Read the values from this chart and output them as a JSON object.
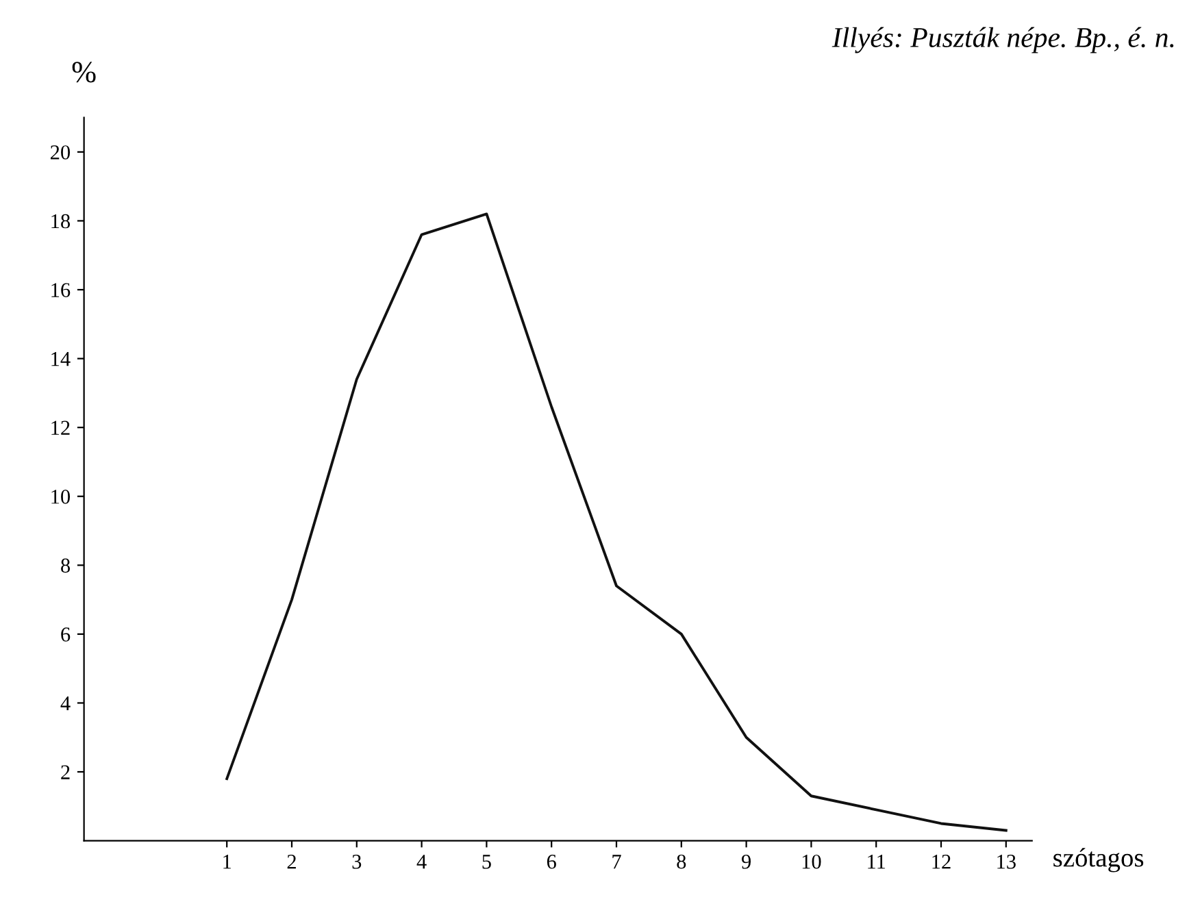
{
  "chart_data": {
    "type": "line",
    "title": "Illyés: Puszták népe. Bp., é. n.",
    "ylabel": "%",
    "xlabel": "szótagos",
    "x": [
      1,
      2,
      3,
      4,
      5,
      6,
      7,
      8,
      9,
      10,
      11,
      12,
      13
    ],
    "values": [
      1.8,
      7,
      13.4,
      17.6,
      18.2,
      12.6,
      7.4,
      6.0,
      3.0,
      1.3,
      0.9,
      0.5,
      0.3
    ],
    "color": "#111111",
    "xlim": [
      -1.2,
      13.4
    ],
    "ylim": [
      0,
      21
    ],
    "xticks": [
      1,
      2,
      3,
      4,
      5,
      6,
      7,
      8,
      9,
      10,
      11,
      12,
      13
    ],
    "yticks": [
      2,
      4,
      6,
      8,
      10,
      12,
      14,
      16,
      18,
      20
    ],
    "grid": false,
    "legend": false,
    "marker": "none",
    "line_style": "solid"
  }
}
